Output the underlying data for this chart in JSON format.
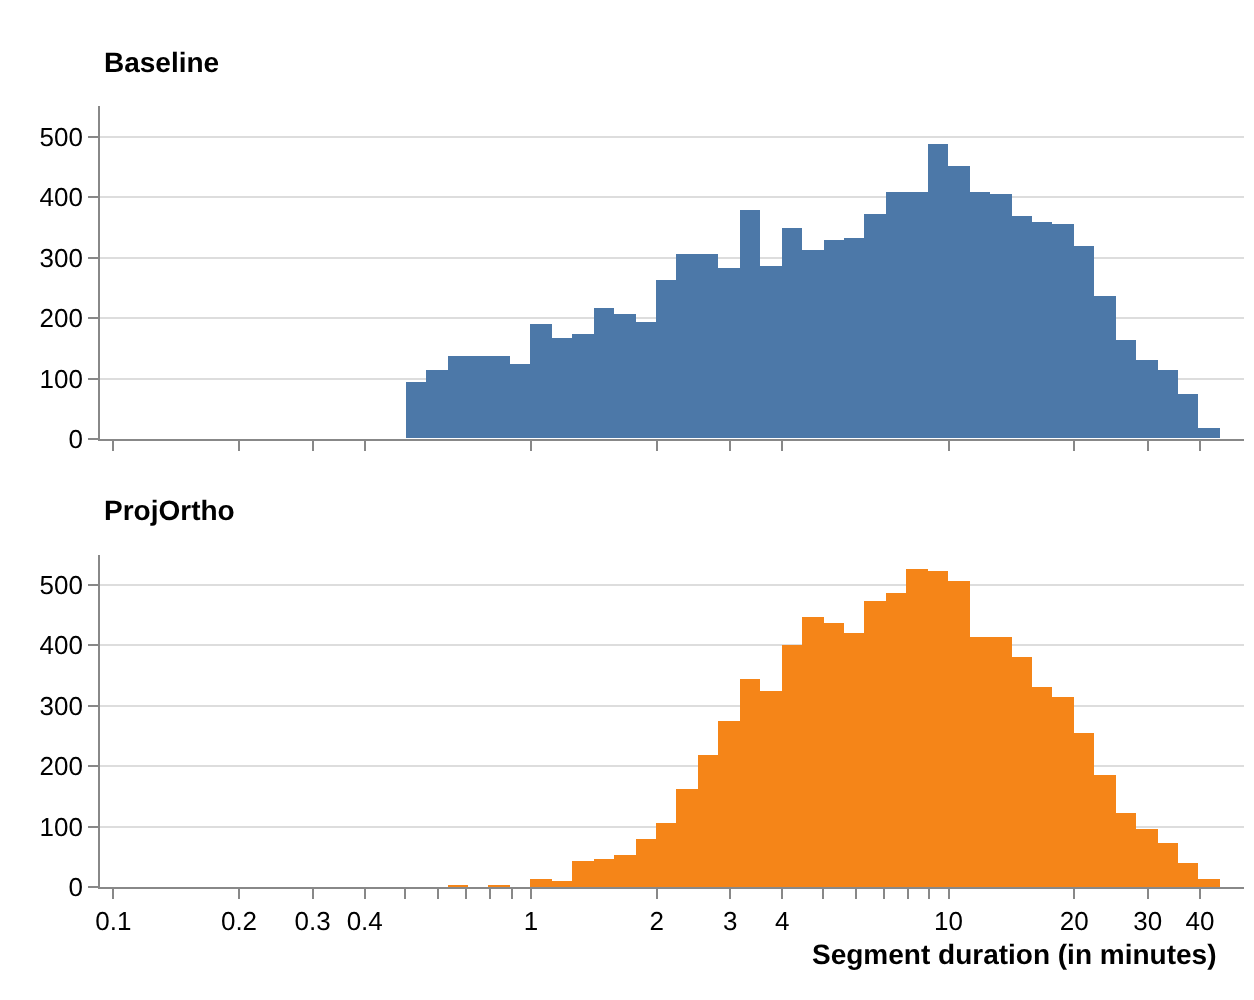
{
  "chart_data": [
    {
      "type": "histogram",
      "title": "Baseline",
      "color": "#4c78a8",
      "bins": [
        0.501,
        0.562,
        0.631,
        0.708,
        0.794,
        0.891,
        1.0,
        1.122,
        1.259,
        1.413,
        1.585,
        1.778,
        1.995,
        2.239,
        2.512,
        2.818,
        3.162,
        3.548,
        3.981,
        4.467,
        5.012,
        5.623,
        6.31,
        7.079,
        7.943,
        8.913,
        10.0,
        11.22,
        12.59,
        14.13,
        15.85,
        17.78,
        19.95,
        22.39,
        25.12,
        28.18,
        31.62,
        35.48,
        39.81,
        44.67
      ],
      "values": [
        95,
        112,
        137,
        135,
        135,
        123,
        190,
        167,
        172,
        217,
        206,
        193,
        263,
        305,
        305,
        283,
        377,
        287,
        347,
        311,
        327,
        333,
        370,
        408,
        408,
        486,
        451,
        408,
        404,
        367,
        358,
        355,
        317,
        237,
        164,
        129,
        115,
        73,
        17
      ],
      "xlim": [
        0.093,
        51
      ],
      "xticks": [
        0.1,
        0.2,
        0.3,
        0.4,
        1,
        2,
        3,
        4,
        10,
        20,
        30,
        40
      ],
      "ylim": [
        0,
        550
      ],
      "yticks": [
        0,
        100,
        200,
        300,
        400,
        500
      ],
      "grid": "y",
      "legend": false,
      "tick_labels": "y",
      "log": "x"
    },
    {
      "type": "histogram",
      "title": "ProjOrtho",
      "color": "#f58518",
      "xlabel": "Segment duration (in minutes)",
      "bins": [
        0.501,
        0.562,
        0.631,
        0.708,
        0.794,
        0.891,
        1.0,
        1.122,
        1.259,
        1.413,
        1.585,
        1.778,
        1.995,
        2.239,
        2.512,
        2.818,
        3.162,
        3.548,
        3.981,
        4.467,
        5.012,
        5.623,
        6.31,
        7.079,
        7.943,
        8.913,
        10.0,
        11.22,
        12.59,
        14.13,
        15.85,
        17.78,
        19.95,
        22.39,
        25.12,
        28.18,
        31.62,
        35.48,
        39.81,
        44.67
      ],
      "values": [
        0,
        0,
        2,
        0,
        5,
        0,
        15,
        10,
        43,
        47,
        53,
        82,
        108,
        162,
        218,
        275,
        344,
        324,
        402,
        447,
        438,
        420,
        475,
        487,
        528,
        522,
        506,
        415,
        416,
        380,
        333,
        315,
        255,
        186,
        125,
        98,
        75,
        41,
        15
      ],
      "xlim": [
        0.093,
        51
      ],
      "xticks": [
        0.1,
        0.2,
        0.3,
        0.4,
        {
          "value": 0.5,
          "label": null
        },
        {
          "value": 0.6,
          "label": null
        },
        {
          "value": 0.7,
          "label": null
        },
        {
          "value": 0.8,
          "label": null
        },
        {
          "value": 0.9,
          "label": null
        },
        1,
        2,
        3,
        4,
        {
          "value": 5,
          "label": null
        },
        {
          "value": 6,
          "label": null
        },
        {
          "value": 7,
          "label": null
        },
        {
          "value": 8,
          "label": null
        },
        {
          "value": 9,
          "label": null
        },
        10,
        20,
        30,
        40
      ],
      "ylim": [
        0,
        550
      ],
      "yticks": [
        0,
        100,
        200,
        300,
        400,
        500
      ],
      "grid": "y",
      "legend": false,
      "log": "x"
    }
  ]
}
